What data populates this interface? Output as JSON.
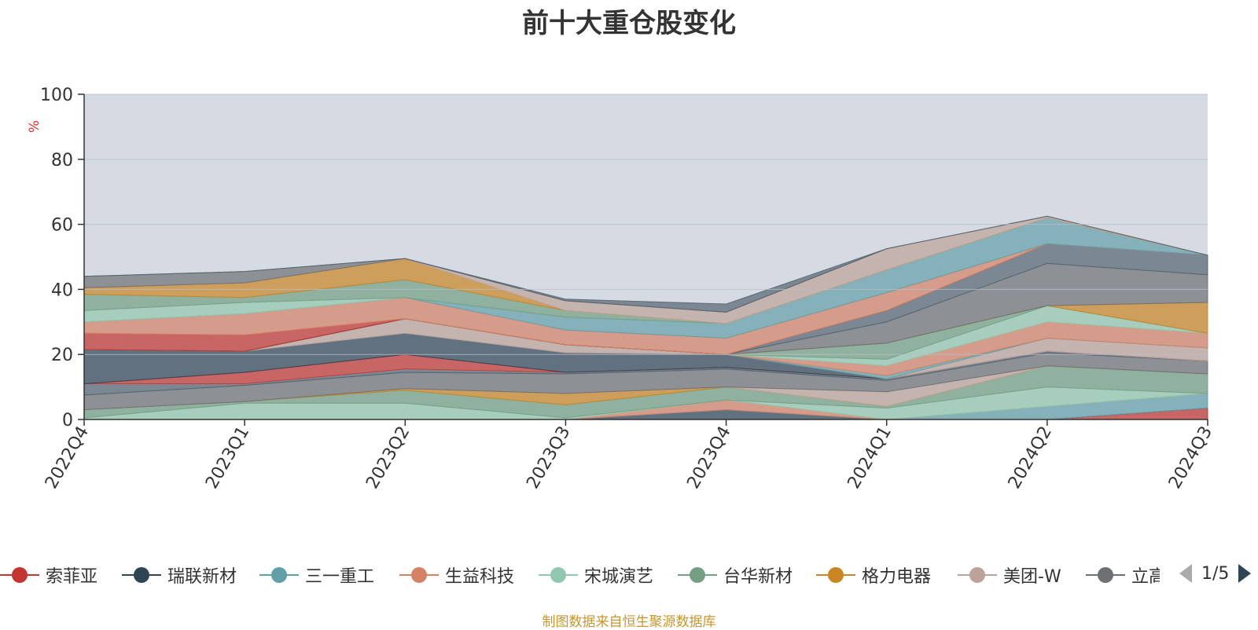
{
  "chart_data": {
    "type": "area",
    "stacked": true,
    "title": "前十大重仓股变化",
    "ylabel": "%",
    "ylim": [
      0,
      100
    ],
    "yticks": [
      0,
      20,
      40,
      60,
      80,
      100
    ],
    "categories": [
      "2022Q4",
      "2023Q1",
      "2023Q2",
      "2023Q3",
      "2023Q4",
      "2024Q1",
      "2024Q2",
      "2024Q3"
    ],
    "grid": true,
    "series": [
      {
        "name": "索菲亚",
        "color": "#c23531",
        "values": [
          0,
          0,
          0,
          0,
          0,
          0,
          0,
          3.5
        ]
      },
      {
        "name": "瑞联新材",
        "color": "#2f4554",
        "values": [
          0,
          0,
          0,
          0,
          3.0,
          0,
          0,
          0
        ]
      },
      {
        "name": "三一重工",
        "color": "#61a0a8",
        "values": [
          0,
          0,
          0,
          0,
          0,
          0,
          4.0,
          4.5
        ]
      },
      {
        "name": "生益科技",
        "color": "#d48265",
        "values": [
          0,
          0,
          0,
          0,
          3.0,
          0,
          0,
          0
        ]
      },
      {
        "name": "宋城演艺",
        "color": "#91c7ae",
        "values": [
          0.5,
          5.0,
          5.0,
          0.5,
          0,
          3.5,
          6.0,
          0
        ]
      },
      {
        "name": "台华新材",
        "color": "#749f83",
        "values": [
          2.5,
          0.5,
          4.0,
          4.0,
          4.0,
          0.5,
          6.5,
          6.0
        ]
      },
      {
        "name": "格力电器",
        "color": "#ca8622",
        "values": [
          0,
          0,
          0.5,
          3.5,
          0,
          0,
          0,
          0
        ]
      },
      {
        "name": "美团-W",
        "color": "#bda29a",
        "values": [
          0,
          0,
          0,
          0,
          0,
          4.5,
          0,
          0
        ]
      },
      {
        "name": "立高",
        "color": "#6e7074",
        "values": [
          4.5,
          5.0,
          5.0,
          6.0,
          5.5,
          3.5,
          4.0,
          4.0
        ]
      },
      {
        "name": "",
        "color": "#546570",
        "values": [
          3.5,
          0.5,
          1.0,
          0.5,
          0.5,
          0.5,
          0.5,
          0
        ]
      },
      {
        "name": "",
        "color": "#c4ccd3",
        "values": [
          0,
          0,
          0,
          0,
          0,
          0,
          0,
          0
        ]
      },
      {
        "name": "",
        "color": "#c23531",
        "values": [
          0,
          3.5,
          4.5,
          0,
          0,
          0,
          0,
          0
        ]
      },
      {
        "name": "",
        "color": "#2f4554",
        "values": [
          10.5,
          6.5,
          6.5,
          6.0,
          4.0,
          0,
          0,
          0
        ]
      },
      {
        "name": "",
        "color": "#bda29a",
        "values": [
          0,
          0,
          4.5,
          2.5,
          0,
          0,
          4.0,
          4.0
        ]
      },
      {
        "name": "",
        "color": "#61a0a8",
        "values": [
          0,
          0,
          0,
          0,
          0,
          1.0,
          0,
          0
        ]
      },
      {
        "name": "",
        "color": "#d48265",
        "values": [
          0,
          0,
          0,
          0,
          0,
          3.0,
          5.0,
          4.5
        ]
      },
      {
        "name": "",
        "color": "#91c7ae",
        "values": [
          0,
          0,
          0,
          0,
          0,
          2.0,
          5.0,
          0
        ]
      },
      {
        "name": "",
        "color": "#749f83",
        "values": [
          0,
          0,
          0,
          0,
          0,
          5.0,
          0,
          0
        ]
      },
      {
        "name": "",
        "color": "#ca8622",
        "values": [
          0,
          0,
          0,
          0,
          0,
          0,
          0,
          9.5
        ]
      },
      {
        "name": "",
        "color": "#6e7074",
        "values": [
          0,
          0,
          0,
          0,
          0,
          6.5,
          13.0,
          8.5
        ]
      },
      {
        "name": "",
        "color": "#546570",
        "values": [
          0,
          0,
          0,
          0,
          0,
          3.5,
          6.0,
          6.0
        ]
      },
      {
        "name": "",
        "color": "#c23531",
        "values": [
          5.0,
          5.0,
          0,
          0,
          0,
          0,
          0,
          0
        ]
      },
      {
        "name": "",
        "color": "#d48265",
        "values": [
          3.5,
          6.5,
          6.5,
          4.5,
          5.0,
          5.5,
          0,
          0
        ]
      },
      {
        "name": "",
        "color": "#61a0a8",
        "values": [
          0,
          0,
          0,
          4.0,
          4.5,
          7.0,
          8.0,
          0
        ]
      },
      {
        "name": "",
        "color": "#91c7ae",
        "values": [
          3.5,
          3.5,
          0,
          0,
          0,
          0,
          0,
          0
        ]
      },
      {
        "name": "",
        "color": "#749f83",
        "values": [
          5.0,
          1.5,
          5.5,
          2.0,
          0,
          0,
          0,
          0
        ]
      },
      {
        "name": "",
        "color": "#ca8622",
        "values": [
          2.0,
          4.5,
          6.5,
          0,
          0,
          0,
          0,
          0
        ]
      },
      {
        "name": "",
        "color": "#bda29a",
        "values": [
          0,
          0,
          0,
          3.0,
          3.5,
          6.5,
          0.5,
          0
        ]
      },
      {
        "name": "",
        "color": "#6e7074",
        "values": [
          3.5,
          3.5,
          0,
          0,
          0,
          0,
          0,
          0
        ]
      },
      {
        "name": "",
        "color": "#546570",
        "values": [
          0,
          0,
          0,
          0.5,
          2.5,
          0,
          0,
          0
        ]
      }
    ]
  },
  "legend": {
    "items": [
      {
        "label": "索菲亚",
        "color": "#c23531"
      },
      {
        "label": "瑞联新材",
        "color": "#2f4554"
      },
      {
        "label": "三一重工",
        "color": "#61a0a8"
      },
      {
        "label": "生益科技",
        "color": "#d48265"
      },
      {
        "label": "宋城演艺",
        "color": "#91c7ae"
      },
      {
        "label": "台华新材",
        "color": "#749f83"
      },
      {
        "label": "格力电器",
        "color": "#ca8622"
      },
      {
        "label": "美团-W",
        "color": "#bda29a"
      },
      {
        "label": "立高",
        "color": "#6e7074"
      }
    ],
    "page": "1/5",
    "prev_icon": "triangle-left-icon",
    "next_icon": "triangle-right-icon"
  },
  "footnote": "制图数据来自恒生聚源数据库"
}
